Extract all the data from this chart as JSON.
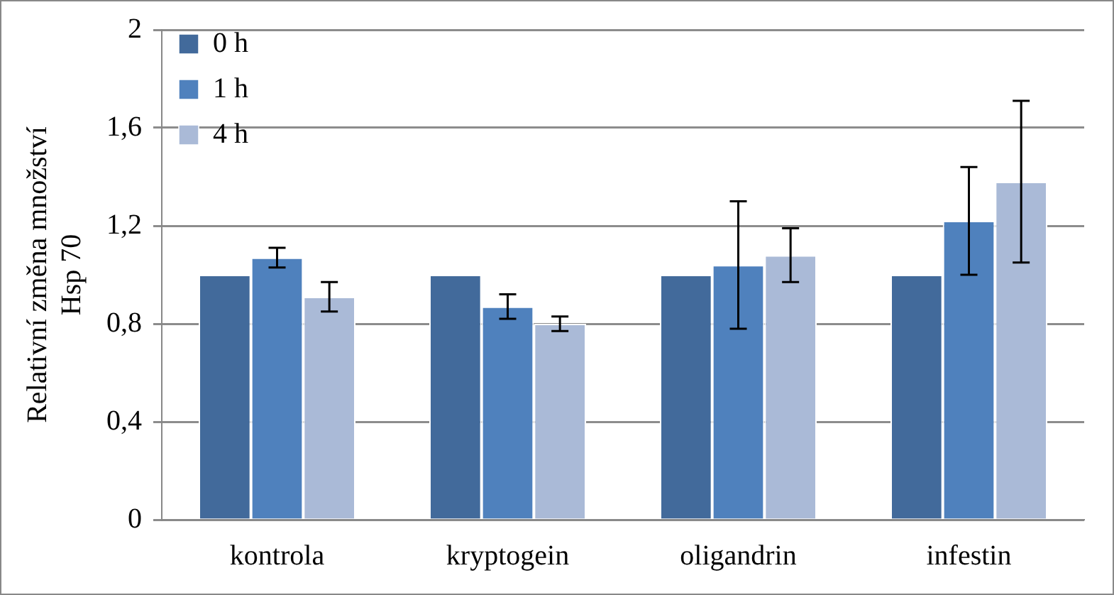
{
  "chart_data": {
    "type": "bar",
    "ylabel": "Relativní změna množství Hsp 70",
    "categories": [
      "kontrola",
      "kryptogein",
      "oligandrin",
      "infestin"
    ],
    "series": [
      {
        "name": "0 h",
        "color": "#426a9b",
        "values": [
          1.0,
          1.0,
          1.0,
          1.0
        ]
      },
      {
        "name": "1 h",
        "color": "#4f81bd",
        "values": [
          1.07,
          0.87,
          1.04,
          1.22
        ],
        "errors": [
          0.04,
          0.05,
          0.26,
          0.22
        ]
      },
      {
        "name": "4 h",
        "color": "#aabad7",
        "values": [
          0.91,
          0.8,
          1.08,
          1.38
        ],
        "errors": [
          0.06,
          0.03,
          0.11,
          0.33
        ]
      }
    ],
    "ylim": [
      0,
      2
    ],
    "yticks": [
      0,
      {
        "value": 0.4,
        "label": "0,4"
      },
      {
        "value": 0.8,
        "label": "0,8"
      },
      {
        "value": 1.2,
        "label": "1,2"
      },
      {
        "value": 1.6,
        "label": "1,6"
      },
      2
    ],
    "grid": "y",
    "legend": "top left"
  }
}
